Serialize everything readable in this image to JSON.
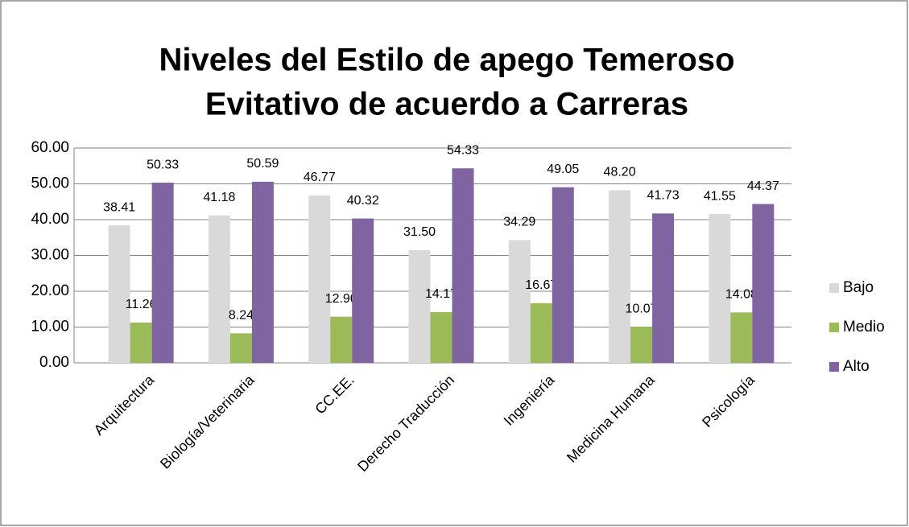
{
  "chart_data": {
    "type": "bar",
    "title": [
      "Niveles del Estilo de apego Temeroso",
      "Evitativo de acuerdo a Carreras"
    ],
    "categories": [
      "Arquitectura",
      "Biología/Veterinaria",
      "CC.EE.",
      "Derecho Traducción",
      "Ingeniería",
      "Medicina Humana",
      "Psicología"
    ],
    "series": [
      {
        "name": "Bajo",
        "color": "#d9d9d9",
        "values": [
          38.41,
          41.18,
          46.77,
          31.5,
          34.29,
          48.2,
          41.55
        ],
        "value_labels": [
          "38.41",
          "41.18",
          "46.77",
          "31.50",
          "34.29",
          "48.20",
          "41.55"
        ]
      },
      {
        "name": "Medio",
        "color": "#9bbb59",
        "values": [
          11.26,
          8.24,
          12.9,
          14.17,
          16.67,
          10.07,
          14.08
        ],
        "value_labels": [
          "11.26",
          "8.24",
          "12.90",
          "14.17",
          "16.67",
          "10.07",
          "14.08"
        ]
      },
      {
        "name": "Alto",
        "color": "#8064a2",
        "values": [
          50.33,
          50.59,
          40.32,
          54.33,
          49.05,
          41.73,
          44.37
        ],
        "value_labels": [
          "50.33",
          "50.59",
          "40.32",
          "54.33",
          "49.05",
          "41.73",
          "44.37"
        ]
      }
    ],
    "ylim": [
      0,
      60
    ],
    "yticks": [
      {
        "value": 0,
        "label": "0.00"
      },
      {
        "value": 10,
        "label": "10.00"
      },
      {
        "value": 20,
        "label": "20.00"
      },
      {
        "value": 30,
        "label": "30.00"
      },
      {
        "value": 40,
        "label": "40.00"
      },
      {
        "value": 50,
        "label": "50.00"
      },
      {
        "value": 60,
        "label": "60.00"
      }
    ],
    "grid": true,
    "legend": "right"
  }
}
